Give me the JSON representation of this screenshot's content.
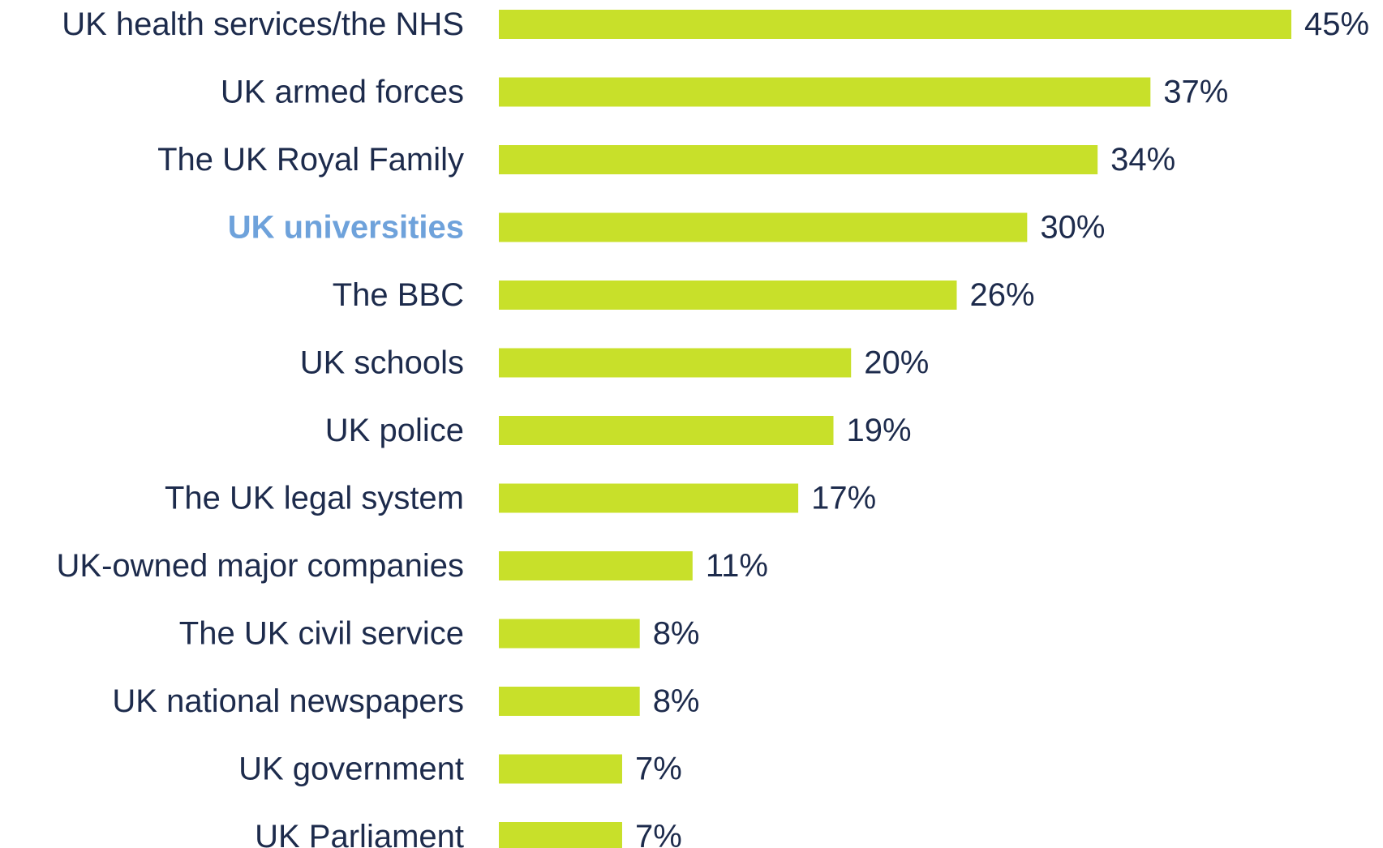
{
  "chart_data": {
    "type": "bar",
    "orientation": "horizontal",
    "categories": [
      "UK health services/the NHS",
      "UK armed forces",
      "The UK Royal Family",
      "UK universities",
      "The BBC",
      "UK schools",
      "UK police",
      "The UK legal system",
      "UK-owned major companies",
      "The UK civil service",
      "UK national newspapers",
      "UK government",
      "UK Parliament"
    ],
    "values": [
      45,
      37,
      34,
      30,
      26,
      20,
      19,
      17,
      11,
      8,
      8,
      7,
      7
    ],
    "value_labels": [
      "45%",
      "37%",
      "34%",
      "30%",
      "26%",
      "20%",
      "19%",
      "17%",
      "11%",
      "8%",
      "8%",
      "7%",
      "7%"
    ],
    "highlight_category": "UK universities",
    "xlim": [
      0,
      45
    ],
    "grid": false,
    "colors": {
      "bar": "#c8e02a",
      "text": "#1d2b4c",
      "highlight": "#6ea2db"
    }
  }
}
